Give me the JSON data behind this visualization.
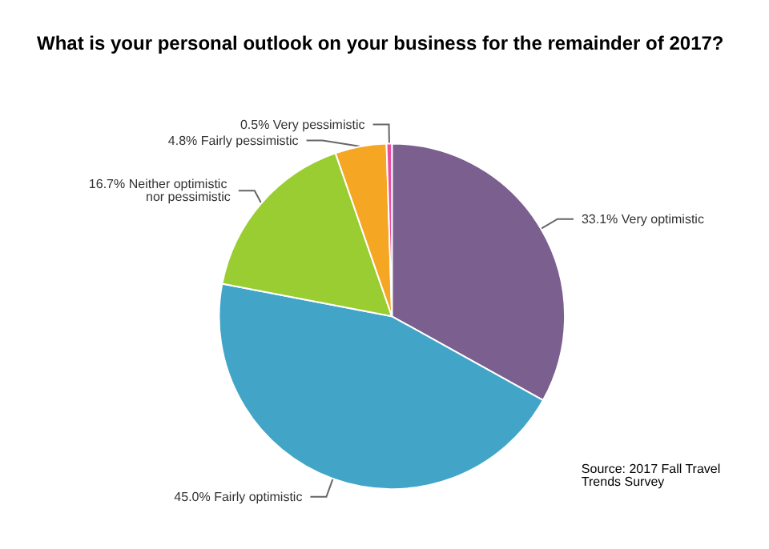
{
  "chart_data": {
    "type": "pie",
    "title": "What is your personal outlook on your business for the remainder of 2017?",
    "categories": [
      "Very optimistic",
      "Fairly optimistic",
      "Neither optimistic nor pessimistic",
      "Fairly pessimistic",
      "Very pessimistic"
    ],
    "values": [
      33.1,
      45.0,
      16.7,
      4.8,
      0.5
    ],
    "value_labels": [
      "33.1%",
      "45.0%",
      "16.7%",
      "4.8%",
      "0.5%"
    ],
    "colors": [
      "#7b5f8e",
      "#42a5c8",
      "#9acd32",
      "#f5a623",
      "#e84fa0"
    ],
    "legend": false,
    "annotations": [
      "Source: 2017 Fall Travel Trends Survey"
    ]
  }
}
